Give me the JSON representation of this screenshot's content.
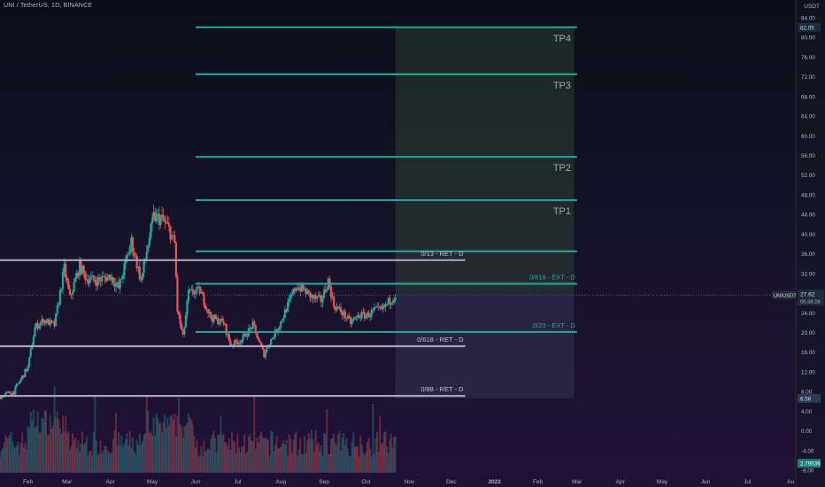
{
  "header": {
    "symbol_title": "UNI / TetherUS, 1D, BINANCE"
  },
  "price_axis": {
    "currency": "USDT",
    "ticks": [
      {
        "label": "84.00",
        "v": 84
      },
      {
        "label": "80.00",
        "v": 80
      },
      {
        "label": "76.00",
        "v": 76
      },
      {
        "label": "72.00",
        "v": 72
      },
      {
        "label": "68.00",
        "v": 68
      },
      {
        "label": "64.00",
        "v": 64
      },
      {
        "label": "60.00",
        "v": 60
      },
      {
        "label": "56.00",
        "v": 56
      },
      {
        "label": "52.00",
        "v": 52
      },
      {
        "label": "48.00",
        "v": 48
      },
      {
        "label": "44.00",
        "v": 44
      },
      {
        "label": "40.00",
        "v": 40
      },
      {
        "label": "36.00",
        "v": 36
      },
      {
        "label": "32.00",
        "v": 32
      },
      {
        "label": "28.00",
        "v": 28
      },
      {
        "label": "24.00",
        "v": 24
      },
      {
        "label": "20.00",
        "v": 20
      },
      {
        "label": "16.00",
        "v": 16
      },
      {
        "label": "12.00",
        "v": 12
      },
      {
        "label": "8.00",
        "v": 8
      },
      {
        "label": "4.00",
        "v": 4
      },
      {
        "label": "0.00",
        "v": 0
      },
      {
        "label": "-4.00",
        "v": -4
      },
      {
        "label": "-8.00",
        "v": -8
      }
    ],
    "badges": [
      {
        "label": "82.05",
        "v": 82.05,
        "bg": "#1a2e3e",
        "fg": "#d1d4dc"
      },
      {
        "label": "6.58",
        "v": 6.58,
        "bg": "#2a3a55",
        "fg": "#d1d4dc"
      },
      {
        "label": "2.79536",
        "v": -6.6,
        "bg": "#1e7d74",
        "fg": "#ffffff"
      }
    ],
    "last_price": {
      "label": "27.62",
      "countdown": "06:38:28",
      "v": 27.62
    },
    "symbol_badge": "UNIUSDT"
  },
  "time_axis": {
    "ticks": [
      {
        "label": "Feb",
        "d": "2021-02-01"
      },
      {
        "label": "Mar",
        "d": "2021-03-01"
      },
      {
        "label": "Apr",
        "d": "2021-04-01"
      },
      {
        "label": "May",
        "d": "2021-05-01"
      },
      {
        "label": "Jun",
        "d": "2021-06-01"
      },
      {
        "label": "Jul",
        "d": "2021-07-01"
      },
      {
        "label": "Aug",
        "d": "2021-08-01"
      },
      {
        "label": "Sep",
        "d": "2021-09-01"
      },
      {
        "label": "Oct",
        "d": "2021-10-01"
      },
      {
        "label": "Nov",
        "d": "2021-11-01"
      },
      {
        "label": "Dec",
        "d": "2021-12-01"
      },
      {
        "label": "2022",
        "d": "2022-01-01"
      },
      {
        "label": "Feb",
        "d": "2022-02-01"
      },
      {
        "label": "Mar",
        "d": "2022-03-01"
      },
      {
        "label": "Apr",
        "d": "2022-04-01"
      },
      {
        "label": "May",
        "d": "2022-05-01"
      },
      {
        "label": "Jun",
        "d": "2022-06-01"
      },
      {
        "label": "Jul",
        "d": "2022-07-01"
      },
      {
        "label": "Au",
        "d": "2022-08-01"
      }
    ]
  },
  "chart_data": {
    "type": "candlestick",
    "symbol": "UNIUSDT",
    "exchange": "BINANCE",
    "interval": "1D",
    "ylim": [
      -8.5,
      85
    ],
    "xlim": [
      "2021-01-12",
      "2022-08-04"
    ],
    "grid": false,
    "price_path": [
      {
        "d": "2021-01-12",
        "c": 7.0
      },
      {
        "d": "2021-01-22",
        "c": 8.0
      },
      {
        "d": "2021-02-01",
        "c": 13.0
      },
      {
        "d": "2021-02-06",
        "c": 21.0
      },
      {
        "d": "2021-02-12",
        "c": 22.5
      },
      {
        "d": "2021-02-20",
        "c": 21.5
      },
      {
        "d": "2021-02-27",
        "c": 33.0
      },
      {
        "d": "2021-03-03",
        "c": 27.0
      },
      {
        "d": "2021-03-10",
        "c": 33.5
      },
      {
        "d": "2021-03-15",
        "c": 31.0
      },
      {
        "d": "2021-03-22",
        "c": 30.5
      },
      {
        "d": "2021-04-01",
        "c": 31.5
      },
      {
        "d": "2021-04-07",
        "c": 29.0
      },
      {
        "d": "2021-04-16",
        "c": 38.5
      },
      {
        "d": "2021-04-23",
        "c": 30.5
      },
      {
        "d": "2021-04-28",
        "c": 38.0
      },
      {
        "d": "2021-05-02",
        "c": 43.5
      },
      {
        "d": "2021-05-08",
        "c": 43.0
      },
      {
        "d": "2021-05-13",
        "c": 41.0
      },
      {
        "d": "2021-05-17",
        "c": 38.0
      },
      {
        "d": "2021-05-19",
        "c": 24.5
      },
      {
        "d": "2021-05-23",
        "c": 19.0
      },
      {
        "d": "2021-05-27",
        "c": 28.0
      },
      {
        "d": "2021-06-04",
        "c": 28.5
      },
      {
        "d": "2021-06-12",
        "c": 23.0
      },
      {
        "d": "2021-06-21",
        "c": 22.0
      },
      {
        "d": "2021-06-26",
        "c": 17.5
      },
      {
        "d": "2021-07-04",
        "c": 18.5
      },
      {
        "d": "2021-07-12",
        "c": 21.5
      },
      {
        "d": "2021-07-20",
        "c": 15.5
      },
      {
        "d": "2021-07-24",
        "c": 18.0
      },
      {
        "d": "2021-07-31",
        "c": 21.5
      },
      {
        "d": "2021-08-06",
        "c": 25.5
      },
      {
        "d": "2021-08-12",
        "c": 29.5
      },
      {
        "d": "2021-08-18",
        "c": 28.5
      },
      {
        "d": "2021-08-24",
        "c": 27.0
      },
      {
        "d": "2021-08-30",
        "c": 26.5
      },
      {
        "d": "2021-09-04",
        "c": 30.5
      },
      {
        "d": "2021-09-08",
        "c": 25.5
      },
      {
        "d": "2021-09-14",
        "c": 24.0
      },
      {
        "d": "2021-09-20",
        "c": 22.0
      },
      {
        "d": "2021-09-26",
        "c": 23.5
      },
      {
        "d": "2021-10-02",
        "c": 23.5
      },
      {
        "d": "2021-10-07",
        "c": 24.5
      },
      {
        "d": "2021-10-12",
        "c": 24.5
      },
      {
        "d": "2021-10-18",
        "c": 26.5
      },
      {
        "d": "2021-10-22",
        "c": 27.62
      }
    ],
    "volume_axis_range": [
      -8.5,
      9
    ],
    "levels": [
      {
        "id": "tp4",
        "label": "TP4",
        "price": 82.05,
        "start": "2021-06-01",
        "end": "2022-03-01",
        "color": "#26a69a"
      },
      {
        "id": "tp3",
        "label": "TP3",
        "price": 72.5,
        "start": "2021-06-01",
        "end": "2022-03-01",
        "color": "#26a69a"
      },
      {
        "id": "tp2",
        "label": "TP2",
        "price": 55.7,
        "start": "2021-06-01",
        "end": "2022-03-01",
        "color": "#26a69a"
      },
      {
        "id": "tp1",
        "label": "TP1",
        "price": 46.9,
        "start": "2021-06-01",
        "end": "2022-03-01",
        "color": "#26a69a"
      },
      {
        "id": "lvl-36",
        "label": "",
        "price": 36.5,
        "start": "2021-06-01",
        "end": "2022-03-01",
        "color": "#26a69a"
      },
      {
        "id": "ret013",
        "label": "0/13 - RET - D",
        "price": 34.7,
        "start": "2021-01-12",
        "end": "2021-12-11",
        "color": "#b0a6c8"
      },
      {
        "id": "ext0618",
        "label": "0/618 - EXT - D",
        "price": 29.9,
        "start": "2021-06-01",
        "end": "2022-03-01",
        "color": "#26a69a"
      },
      {
        "id": "ext023",
        "label": "0/23 - EXT - D",
        "price": 20.1,
        "start": "2021-06-01",
        "end": "2022-03-01",
        "color": "#26a69a"
      },
      {
        "id": "ret0618",
        "label": "0/618 - RET - D",
        "price": 17.2,
        "start": "2021-01-12",
        "end": "2021-12-11",
        "color": "#b0a6c8"
      },
      {
        "id": "ret088",
        "label": "0/88 - RET - D",
        "price": 7.1,
        "start": "2021-01-12",
        "end": "2021-12-11",
        "color": "#b0a6c8"
      }
    ],
    "position_tool": {
      "entry": 27.62,
      "target": 82.05,
      "stop": 6.58,
      "start": "2021-10-22",
      "end": "2022-02-27",
      "profit_color": "#3a5a3a",
      "loss_color": "#3a3a5a"
    },
    "colors": {
      "up": "#26a69a",
      "down": "#ef5350",
      "last_price_line": "#787b86"
    }
  }
}
